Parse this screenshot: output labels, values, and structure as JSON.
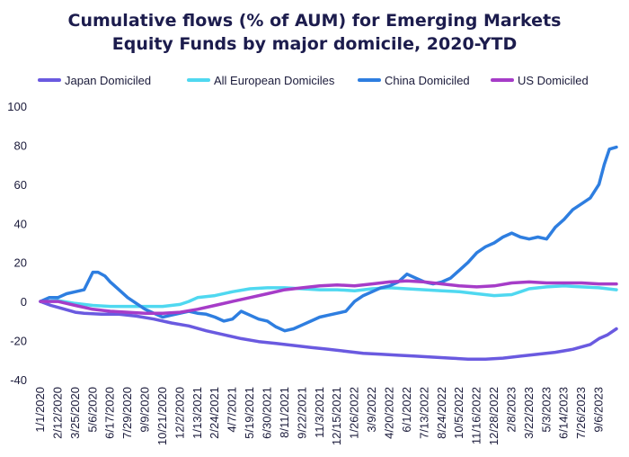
{
  "chart_data": {
    "type": "line",
    "title": "Cumulative flows (% of AUM) for Emerging Markets Equity Funds by major domicile, 2020-YTD",
    "title_lines": [
      "Cumulative flows (% of AUM) for Emerging Markets",
      "Equity Funds by major domicile, 2020-YTD"
    ],
    "xlabel": "",
    "ylabel": "",
    "ylim": [
      -40,
      100
    ],
    "yticks": [
      -40,
      -20,
      0,
      20,
      40,
      60,
      80,
      100
    ],
    "grid": false,
    "legend_position": "top",
    "x_ticks": [
      "1/1/2020",
      "2/12/2020",
      "3/25/2020",
      "5/6/2020",
      "6/17/2020",
      "7/29/2020",
      "9/9/2020",
      "10/21/2020",
      "12/2/2020",
      "1/13/2021",
      "2/24/2021",
      "4/7/2021",
      "5/19/2021",
      "6/30/2021",
      "8/11/2021",
      "9/22/2021",
      "11/3/2021",
      "12/15/2021",
      "1/26/2022",
      "3/9/2022",
      "4/20/2022",
      "6/1/2022",
      "7/13/2022",
      "8/24/2022",
      "10/5/2022",
      "11/16/2022",
      "12/28/2022",
      "2/8/2023",
      "3/22/2023",
      "5/3/2023",
      "6/14/2023",
      "7/26/2023",
      "9/6/2023"
    ],
    "x_range": [
      0,
      33
    ],
    "series": [
      {
        "name": "Japan Domiciled",
        "color": "#6a5ae0",
        "points": [
          [
            0,
            0
          ],
          [
            0.6,
            -2
          ],
          [
            1.2,
            -3.5
          ],
          [
            2,
            -5.5
          ],
          [
            2.5,
            -6
          ],
          [
            3.5,
            -6.5
          ],
          [
            4.5,
            -6.5
          ],
          [
            5.5,
            -7.5
          ],
          [
            6.5,
            -9
          ],
          [
            7.5,
            -11
          ],
          [
            8.5,
            -12.5
          ],
          [
            9.5,
            -15
          ],
          [
            10.5,
            -17
          ],
          [
            11.5,
            -19
          ],
          [
            12.5,
            -20.5
          ],
          [
            13.5,
            -21.5
          ],
          [
            14.5,
            -22.5
          ],
          [
            15.5,
            -23.5
          ],
          [
            16.5,
            -24.5
          ],
          [
            17.5,
            -25.5
          ],
          [
            18.5,
            -26.5
          ],
          [
            19.5,
            -27
          ],
          [
            20.5,
            -27.5
          ],
          [
            21.5,
            -28
          ],
          [
            22.5,
            -28.5
          ],
          [
            23.5,
            -29
          ],
          [
            24.5,
            -29.5
          ],
          [
            25.5,
            -29.5
          ],
          [
            26.5,
            -29
          ],
          [
            27.5,
            -28
          ],
          [
            28.5,
            -27
          ],
          [
            29.5,
            -26
          ],
          [
            30.5,
            -24.5
          ],
          [
            31.5,
            -22
          ],
          [
            32,
            -19
          ],
          [
            32.5,
            -17
          ],
          [
            33,
            -14
          ]
        ]
      },
      {
        "name": "All European Domiciles",
        "color": "#4fd8f0",
        "points": [
          [
            0,
            0
          ],
          [
            1,
            0.5
          ],
          [
            2,
            -1
          ],
          [
            3,
            -2
          ],
          [
            4,
            -2.5
          ],
          [
            5,
            -2.5
          ],
          [
            6,
            -2.5
          ],
          [
            7,
            -2.5
          ],
          [
            8,
            -1.5
          ],
          [
            8.5,
            0
          ],
          [
            9,
            2
          ],
          [
            10,
            3
          ],
          [
            11,
            5
          ],
          [
            12,
            6.5
          ],
          [
            13,
            7
          ],
          [
            14,
            7
          ],
          [
            15,
            6.5
          ],
          [
            16,
            6
          ],
          [
            17,
            6
          ],
          [
            18,
            5.5
          ],
          [
            19,
            6.5
          ],
          [
            20,
            7
          ],
          [
            21,
            6.5
          ],
          [
            22,
            6
          ],
          [
            23,
            5.5
          ],
          [
            24,
            5
          ],
          [
            25,
            4
          ],
          [
            26,
            3
          ],
          [
            27,
            3.5
          ],
          [
            27.5,
            5
          ],
          [
            28,
            6.5
          ],
          [
            29,
            7.5
          ],
          [
            30,
            8
          ],
          [
            31,
            7.5
          ],
          [
            32,
            7
          ],
          [
            33,
            6
          ]
        ]
      },
      {
        "name": "China Domiciled",
        "color": "#2e7ee0",
        "points": [
          [
            0,
            0
          ],
          [
            0.5,
            2
          ],
          [
            1,
            2
          ],
          [
            1.5,
            4
          ],
          [
            2,
            5
          ],
          [
            2.5,
            6
          ],
          [
            3,
            15
          ],
          [
            3.3,
            15
          ],
          [
            3.7,
            13
          ],
          [
            4,
            10
          ],
          [
            4.5,
            6
          ],
          [
            5,
            2
          ],
          [
            5.5,
            -1
          ],
          [
            6,
            -4
          ],
          [
            6.5,
            -6
          ],
          [
            7,
            -8
          ],
          [
            7.5,
            -7
          ],
          [
            8,
            -6
          ],
          [
            8.5,
            -5
          ],
          [
            9,
            -6
          ],
          [
            9.5,
            -6.5
          ],
          [
            10,
            -8
          ],
          [
            10.5,
            -10
          ],
          [
            11,
            -9
          ],
          [
            11.5,
            -5
          ],
          [
            12,
            -7
          ],
          [
            12.5,
            -9
          ],
          [
            13,
            -10
          ],
          [
            13.5,
            -13
          ],
          [
            14,
            -15
          ],
          [
            14.5,
            -14
          ],
          [
            15,
            -12
          ],
          [
            15.5,
            -10
          ],
          [
            16,
            -8
          ],
          [
            16.5,
            -7
          ],
          [
            17,
            -6
          ],
          [
            17.5,
            -5
          ],
          [
            18,
            0
          ],
          [
            18.5,
            3
          ],
          [
            19,
            5
          ],
          [
            19.5,
            7
          ],
          [
            20,
            8
          ],
          [
            20.5,
            10
          ],
          [
            21,
            14
          ],
          [
            21.5,
            12
          ],
          [
            22,
            10
          ],
          [
            22.5,
            9
          ],
          [
            23,
            10
          ],
          [
            23.5,
            12
          ],
          [
            24,
            16
          ],
          [
            24.5,
            20
          ],
          [
            25,
            25
          ],
          [
            25.5,
            28
          ],
          [
            26,
            30
          ],
          [
            26.5,
            33
          ],
          [
            27,
            35
          ],
          [
            27.5,
            33
          ],
          [
            28,
            32
          ],
          [
            28.5,
            33
          ],
          [
            29,
            32
          ],
          [
            29.5,
            38
          ],
          [
            30,
            42
          ],
          [
            30.5,
            47
          ],
          [
            31,
            50
          ],
          [
            31.5,
            53
          ],
          [
            32,
            60
          ],
          [
            32.3,
            70
          ],
          [
            32.6,
            78
          ],
          [
            33,
            79
          ]
        ]
      },
      {
        "name": "US Domiciled",
        "color": "#a63cc8",
        "points": [
          [
            0,
            0
          ],
          [
            1,
            0
          ],
          [
            2,
            -2
          ],
          [
            3,
            -4
          ],
          [
            4,
            -5
          ],
          [
            5,
            -5.5
          ],
          [
            6,
            -6
          ],
          [
            7,
            -6
          ],
          [
            8,
            -5.5
          ],
          [
            9,
            -4
          ],
          [
            10,
            -2
          ],
          [
            11,
            0
          ],
          [
            12,
            2
          ],
          [
            13,
            4
          ],
          [
            14,
            6
          ],
          [
            15,
            7
          ],
          [
            16,
            8
          ],
          [
            17,
            8.5
          ],
          [
            18,
            8
          ],
          [
            19,
            9
          ],
          [
            20,
            10
          ],
          [
            21,
            10.5
          ],
          [
            22,
            10
          ],
          [
            23,
            9
          ],
          [
            24,
            8
          ],
          [
            25,
            7.5
          ],
          [
            26,
            8
          ],
          [
            27,
            9.5
          ],
          [
            28,
            10
          ],
          [
            29,
            9.5
          ],
          [
            30,
            9.5
          ],
          [
            31,
            9.5
          ],
          [
            32,
            9
          ],
          [
            33,
            9
          ]
        ]
      }
    ]
  }
}
